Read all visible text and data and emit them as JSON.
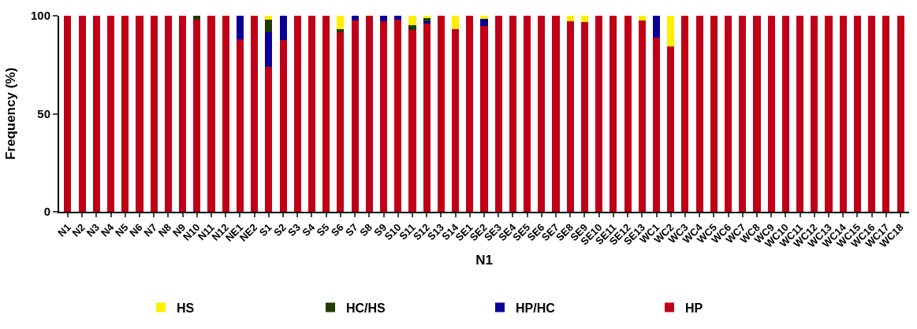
{
  "chart_data": {
    "type": "bar",
    "stacked": true,
    "xlabel": "N1",
    "ylabel": "Frequency (%)",
    "categories": [
      "N1",
      "N2",
      "N3",
      "N4",
      "N5",
      "N6",
      "N7",
      "N8",
      "N9",
      "N10",
      "N11",
      "N12",
      "NE1",
      "NE2",
      "S1",
      "S2",
      "S3",
      "S4",
      "S5",
      "S6",
      "S7",
      "S8",
      "S9",
      "S10",
      "S11",
      "S12",
      "S13",
      "S14",
      "SE1",
      "SE2",
      "SE3",
      "SE4",
      "SE5",
      "SE6",
      "SE7",
      "SE8",
      "SE9",
      "SE10",
      "SE11",
      "SE12",
      "SE13",
      "WC1",
      "WC2",
      "WC3",
      "WC4",
      "WC5",
      "WC6",
      "WC7",
      "WC8",
      "WC9",
      "WC10",
      "WC11",
      "WC12",
      "WC13",
      "WC14",
      "WC15",
      "WC16",
      "WC17",
      "WC18"
    ],
    "series": [
      {
        "name": "HP",
        "color": "#c00018",
        "values": [
          100,
          100,
          100,
          100,
          100,
          100,
          100,
          100,
          100,
          97.9,
          100,
          100,
          88,
          100,
          74,
          87.5,
          100,
          100,
          100,
          91.6,
          97.6,
          100,
          97.3,
          97.9,
          92.7,
          95.9,
          100,
          93.1,
          100,
          94.6,
          100,
          100,
          100,
          100,
          100,
          97.3,
          96.7,
          100,
          100,
          100,
          97.5,
          88.9,
          84.5,
          100,
          100,
          100,
          100,
          100,
          100,
          100,
          100,
          100,
          100,
          100,
          100,
          100,
          100,
          100,
          100
        ]
      },
      {
        "name": "HP/HC",
        "color": "#0a0096",
        "values": [
          null,
          null,
          null,
          null,
          null,
          null,
          null,
          null,
          null,
          null,
          null,
          null,
          12,
          null,
          17.5,
          12.5,
          null,
          null,
          null,
          null,
          2.4,
          null,
          2.7,
          2.1,
          null,
          1.4,
          null,
          null,
          null,
          3.6,
          null,
          null,
          null,
          null,
          null,
          null,
          null,
          null,
          null,
          null,
          null,
          11.1,
          null,
          null,
          null,
          null,
          null,
          null,
          null,
          null,
          null,
          null,
          null,
          null,
          null,
          null,
          null,
          null,
          null
        ]
      },
      {
        "name": "HC/HS",
        "color": "#1e3c00",
        "values": [
          null,
          null,
          null,
          null,
          null,
          null,
          null,
          null,
          null,
          2.1,
          null,
          null,
          null,
          null,
          6.3,
          null,
          null,
          null,
          null,
          1.4,
          null,
          null,
          null,
          null,
          2.4,
          1.4,
          null,
          null,
          null,
          null,
          null,
          null,
          null,
          null,
          null,
          null,
          null,
          null,
          null,
          null,
          null,
          null,
          null,
          null,
          null,
          null,
          null,
          null,
          null,
          null,
          null,
          null,
          null,
          null,
          null,
          null,
          null,
          null,
          null
        ]
      },
      {
        "name": "HS",
        "color": "#ffee00",
        "values": [
          null,
          null,
          null,
          null,
          null,
          null,
          null,
          null,
          null,
          null,
          null,
          null,
          null,
          null,
          2.2,
          null,
          null,
          null,
          null,
          7,
          null,
          null,
          null,
          null,
          4.9,
          1.3,
          null,
          6.9,
          null,
          1.8,
          null,
          null,
          null,
          null,
          null,
          2.7,
          3.3,
          null,
          null,
          null,
          2.5,
          null,
          15.5,
          null,
          null,
          null,
          null,
          null,
          null,
          null,
          null,
          null,
          null,
          null,
          null,
          null,
          null,
          null,
          null
        ]
      }
    ],
    "ylim": [
      0,
      100
    ],
    "yticks": [
      0,
      50,
      100
    ],
    "legend": "bottom"
  }
}
